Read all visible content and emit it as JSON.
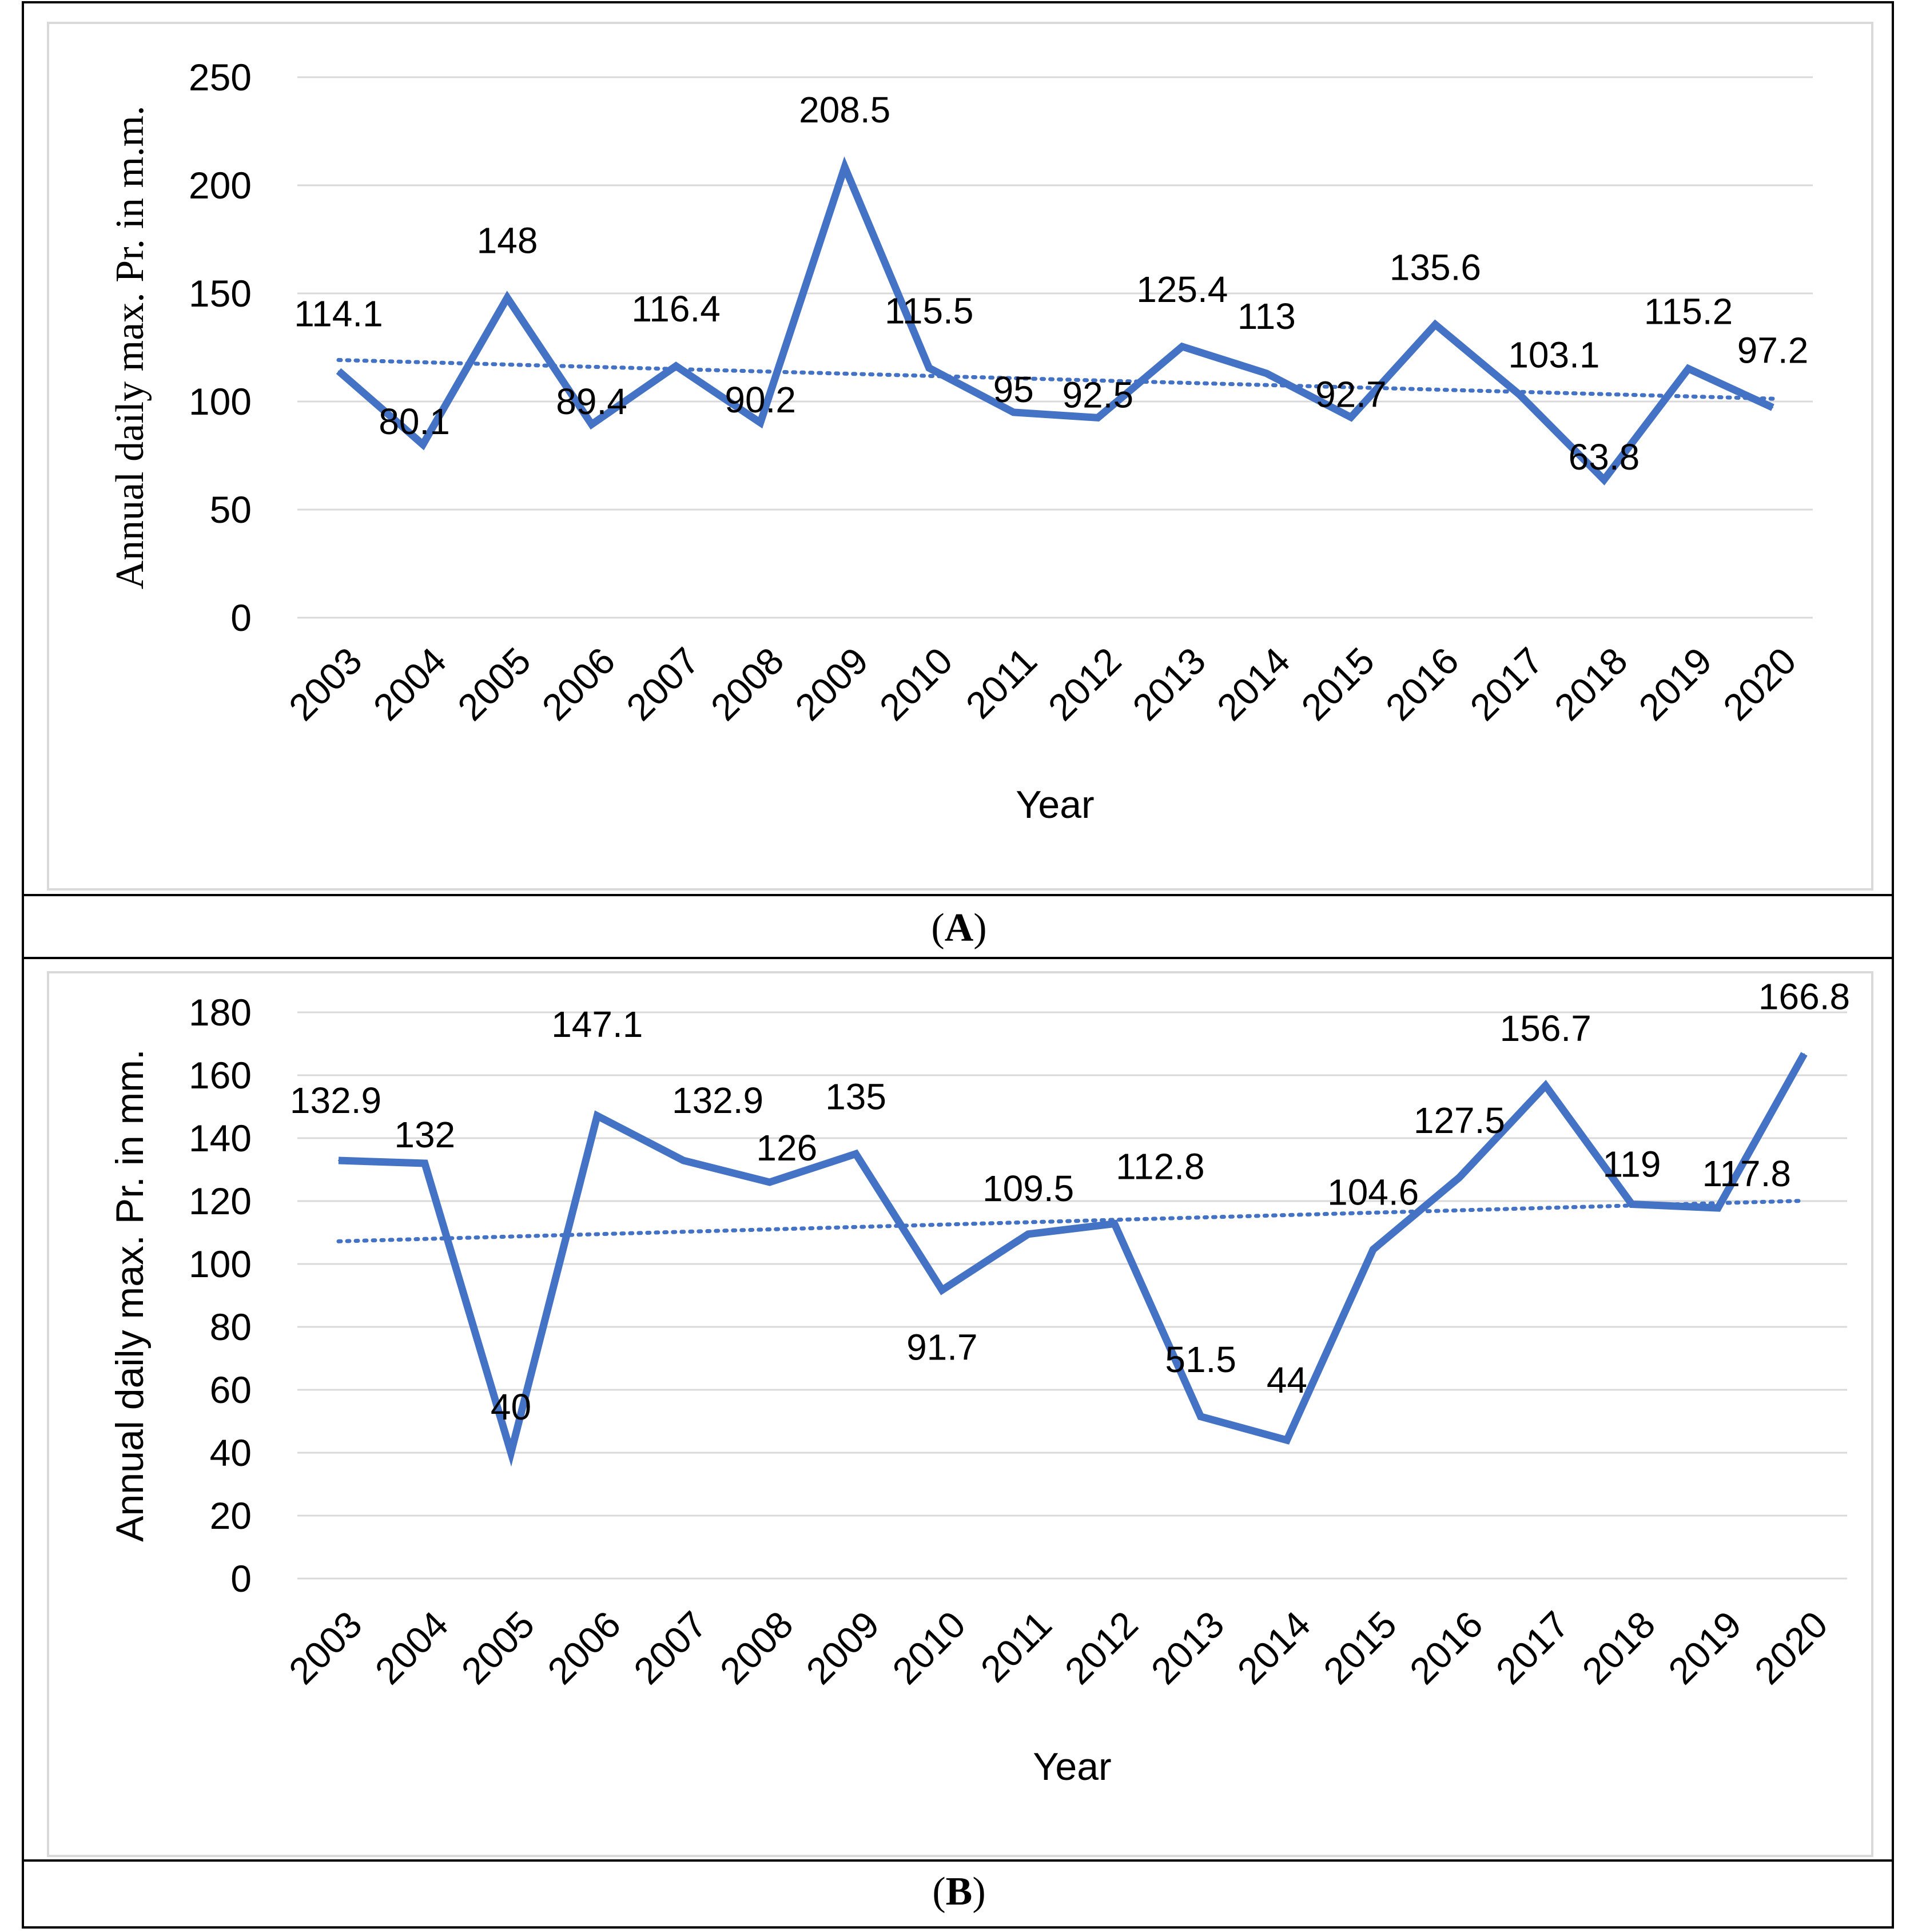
{
  "chart_data": [
    {
      "id": "A",
      "type": "line",
      "caption_letter": "A",
      "ylabel": "Annual daily max. Pr. in m.m.",
      "xlabel": "Year",
      "ylim": [
        0,
        250
      ],
      "yticks": [
        0,
        50,
        100,
        150,
        200,
        250
      ],
      "categories": [
        "2003",
        "2004",
        "2005",
        "2006",
        "2007",
        "2008",
        "2009",
        "2010",
        "2011",
        "2012",
        "2013",
        "2014",
        "2015",
        "2016",
        "2017",
        "2018",
        "2019",
        "2020"
      ],
      "values": [
        114.1,
        80.1,
        148,
        89.4,
        116.4,
        90.2,
        208.5,
        115.5,
        95,
        92.5,
        125.4,
        113,
        92.7,
        135.6,
        103.1,
        63.8,
        115.2,
        97.2
      ],
      "labels": [
        "114.1",
        "80.1",
        "148",
        "89.4",
        "116.4",
        "90.2",
        "208.5",
        "115.5",
        "95",
        "92.5",
        "125.4",
        "113",
        "92.7",
        "135.6",
        "103.1",
        "63.8",
        "115.2",
        "97.2"
      ],
      "trend": {
        "start": 119.2,
        "end": 101.3
      },
      "color": "#4472C4"
    },
    {
      "id": "B",
      "type": "line",
      "caption_letter": "B",
      "ylabel": "Annual daily max. Pr. in mm.",
      "xlabel": "Year",
      "ylim": [
        0,
        180
      ],
      "yticks": [
        0,
        20,
        40,
        60,
        80,
        100,
        120,
        140,
        160,
        180
      ],
      "categories": [
        "2003",
        "2004",
        "2005",
        "2006",
        "2007",
        "2008",
        "2009",
        "2010",
        "2011",
        "2012",
        "2013",
        "2014",
        "2015",
        "2016",
        "2017",
        "2018",
        "2019",
        "2020"
      ],
      "values": [
        132.9,
        132,
        40,
        147.1,
        132.9,
        126,
        135,
        91.7,
        109.5,
        112.8,
        51.5,
        44,
        104.6,
        127.5,
        156.7,
        119,
        117.8,
        166.8
      ],
      "labels": [
        "132.9",
        "132",
        "40",
        "147.1",
        "132.9",
        "126",
        "135",
        "91.7",
        "109.5",
        "112.8",
        "51.5",
        "44",
        "104.6",
        "127.5",
        "156.7",
        "119",
        "117.8",
        "166.8"
      ],
      "trend": {
        "start": 107.2,
        "end": 120.1
      },
      "color": "#4472C4"
    }
  ]
}
